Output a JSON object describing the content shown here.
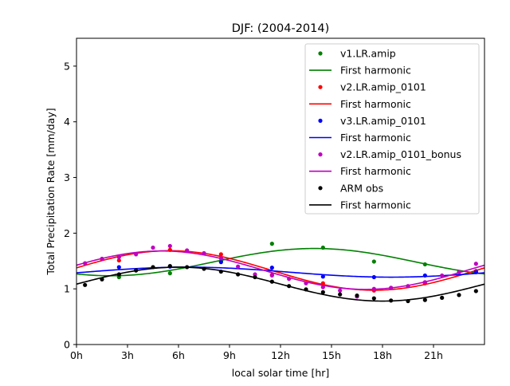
{
  "chart_data": {
    "type": "scatter",
    "title": "DJF: (2004-2014)",
    "xlabel": "local solar time [hr]",
    "ylabel": "Total Precipitation Rate [mm/day]",
    "xlim": [
      0,
      24
    ],
    "ylim": [
      0,
      5.5
    ],
    "xticks": [
      {
        "value": 0,
        "label": "0h"
      },
      {
        "value": 3,
        "label": "3h"
      },
      {
        "value": 6,
        "label": "6h"
      },
      {
        "value": 9,
        "label": "9h"
      },
      {
        "value": 12,
        "label": "12h"
      },
      {
        "value": 15,
        "label": "15h"
      },
      {
        "value": 18,
        "label": "18h"
      },
      {
        "value": 21,
        "label": "21h"
      }
    ],
    "yticks": [
      {
        "value": 0,
        "label": "0"
      },
      {
        "value": 1,
        "label": "1"
      },
      {
        "value": 2,
        "label": "2"
      },
      {
        "value": 3,
        "label": "3"
      },
      {
        "value": 4,
        "label": "4"
      },
      {
        "value": 5,
        "label": "5"
      }
    ],
    "grid": false,
    "legend_position": "top-right",
    "series": [
      {
        "name": "v1.LR.amip",
        "color": "#008000",
        "fit_label": "First harmonic",
        "points": [
          [
            2.5,
            1.21
          ],
          [
            5.5,
            1.28
          ],
          [
            8.5,
            1.5
          ],
          [
            11.5,
            1.81
          ],
          [
            14.5,
            1.74
          ],
          [
            17.5,
            1.49
          ],
          [
            20.5,
            1.44
          ],
          [
            23.5,
            1.32
          ]
        ],
        "harmonic": {
          "mean": 1.48,
          "amplitude": 0.245,
          "peak_hour": 14.0
        }
      },
      {
        "name": "v2.LR.amip_0101",
        "color": "#ff0000",
        "fit_label": "First harmonic",
        "points": [
          [
            2.5,
            1.51
          ],
          [
            5.5,
            1.7
          ],
          [
            8.5,
            1.62
          ],
          [
            11.5,
            1.25
          ],
          [
            14.5,
            1.1
          ],
          [
            17.5,
            0.97
          ],
          [
            20.5,
            1.1
          ],
          [
            23.5,
            1.32
          ]
        ],
        "harmonic": {
          "mean": 1.33,
          "amplitude": 0.355,
          "peak_hour": 5.5
        }
      },
      {
        "name": "v3.LR.amip_0101",
        "color": "#0000ff",
        "fit_label": "First harmonic",
        "points": [
          [
            2.5,
            1.39
          ],
          [
            5.5,
            1.4
          ],
          [
            8.5,
            1.48
          ],
          [
            11.5,
            1.38
          ],
          [
            14.5,
            1.22
          ],
          [
            17.5,
            1.21
          ],
          [
            20.5,
            1.24
          ],
          [
            23.5,
            1.3
          ]
        ],
        "harmonic": {
          "mean": 1.3,
          "amplitude": 0.09,
          "peak_hour": 6.5
        }
      },
      {
        "name": "v2.LR.amip_0101_bonus",
        "color": "#bf00bf",
        "fit_label": "First harmonic",
        "points": [
          [
            0.5,
            1.46
          ],
          [
            1.5,
            1.54
          ],
          [
            2.5,
            1.57
          ],
          [
            3.5,
            1.62
          ],
          [
            4.5,
            1.74
          ],
          [
            5.5,
            1.77
          ],
          [
            6.5,
            1.69
          ],
          [
            7.5,
            1.64
          ],
          [
            8.5,
            1.55
          ],
          [
            9.5,
            1.4
          ],
          [
            10.5,
            1.26
          ],
          [
            11.5,
            1.24
          ],
          [
            12.5,
            1.18
          ],
          [
            13.5,
            1.1
          ],
          [
            14.5,
            1.03
          ],
          [
            15.5,
            0.97
          ],
          [
            16.5,
            0.86
          ],
          [
            17.5,
            1.0
          ],
          [
            18.5,
            1.02
          ],
          [
            19.5,
            1.05
          ],
          [
            20.5,
            1.12
          ],
          [
            21.5,
            1.24
          ],
          [
            22.5,
            1.3
          ],
          [
            23.5,
            1.45
          ]
        ],
        "harmonic": {
          "mean": 1.335,
          "amplitude": 0.345,
          "peak_hour": 5.0
        }
      },
      {
        "name": "ARM obs",
        "color": "#000000",
        "fit_label": "First harmonic",
        "points": [
          [
            0.5,
            1.07
          ],
          [
            1.5,
            1.17
          ],
          [
            2.5,
            1.26
          ],
          [
            3.5,
            1.33
          ],
          [
            4.5,
            1.39
          ],
          [
            5.5,
            1.41
          ],
          [
            6.5,
            1.39
          ],
          [
            7.5,
            1.36
          ],
          [
            8.5,
            1.31
          ],
          [
            9.5,
            1.26
          ],
          [
            10.5,
            1.21
          ],
          [
            11.5,
            1.13
          ],
          [
            12.5,
            1.05
          ],
          [
            13.5,
            0.99
          ],
          [
            14.5,
            0.94
          ],
          [
            15.5,
            0.9
          ],
          [
            16.5,
            0.88
          ],
          [
            17.5,
            0.83
          ],
          [
            18.5,
            0.79
          ],
          [
            19.5,
            0.78
          ],
          [
            20.5,
            0.8
          ],
          [
            21.5,
            0.84
          ],
          [
            22.5,
            0.89
          ],
          [
            23.5,
            0.96
          ]
        ],
        "harmonic": {
          "mean": 1.085,
          "amplitude": 0.305,
          "peak_hour": 6.0
        }
      }
    ]
  }
}
